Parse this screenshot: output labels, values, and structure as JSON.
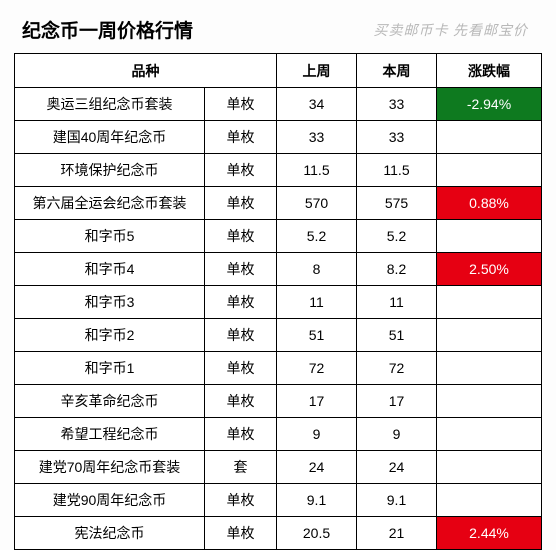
{
  "title": "纪念币一周价格行情",
  "tagline": "买卖邮币卡 先看邮宝价",
  "columns": {
    "name": "品种",
    "last": "上周",
    "this": "本周",
    "change": "涨跌幅"
  },
  "colors": {
    "positive_bg": "#e60012",
    "negative_bg": "#0e7a1f",
    "change_text": "#ffffff",
    "border": "#000000"
  },
  "rows": [
    {
      "name": "奥运三组纪念币套装",
      "unit": "单枚",
      "last": "34",
      "this": "33",
      "change": "-2.94%",
      "dir": "neg"
    },
    {
      "name": "建国40周年纪念币",
      "unit": "单枚",
      "last": "33",
      "this": "33",
      "change": "",
      "dir": ""
    },
    {
      "name": "环境保护纪念币",
      "unit": "单枚",
      "last": "11.5",
      "this": "11.5",
      "change": "",
      "dir": ""
    },
    {
      "name": "第六届全运会纪念币套装",
      "unit": "单枚",
      "last": "570",
      "this": "575",
      "change": "0.88%",
      "dir": "pos"
    },
    {
      "name": "和字币5",
      "unit": "单枚",
      "last": "5.2",
      "this": "5.2",
      "change": "",
      "dir": ""
    },
    {
      "name": "和字币4",
      "unit": "单枚",
      "last": "8",
      "this": "8.2",
      "change": "2.50%",
      "dir": "pos"
    },
    {
      "name": "和字币3",
      "unit": "单枚",
      "last": "11",
      "this": "11",
      "change": "",
      "dir": ""
    },
    {
      "name": "和字币2",
      "unit": "单枚",
      "last": "51",
      "this": "51",
      "change": "",
      "dir": ""
    },
    {
      "name": "和字币1",
      "unit": "单枚",
      "last": "72",
      "this": "72",
      "change": "",
      "dir": ""
    },
    {
      "name": "辛亥革命纪念币",
      "unit": "单枚",
      "last": "17",
      "this": "17",
      "change": "",
      "dir": ""
    },
    {
      "name": "希望工程纪念币",
      "unit": "单枚",
      "last": "9",
      "this": "9",
      "change": "",
      "dir": ""
    },
    {
      "name": "建党70周年纪念币套装",
      "unit": "套",
      "last": "24",
      "this": "24",
      "change": "",
      "dir": ""
    },
    {
      "name": "建党90周年纪念币",
      "unit": "单枚",
      "last": "9.1",
      "this": "9.1",
      "change": "",
      "dir": ""
    },
    {
      "name": "宪法纪念币",
      "unit": "单枚",
      "last": "20.5",
      "this": "21",
      "change": "2.44%",
      "dir": "pos"
    }
  ]
}
